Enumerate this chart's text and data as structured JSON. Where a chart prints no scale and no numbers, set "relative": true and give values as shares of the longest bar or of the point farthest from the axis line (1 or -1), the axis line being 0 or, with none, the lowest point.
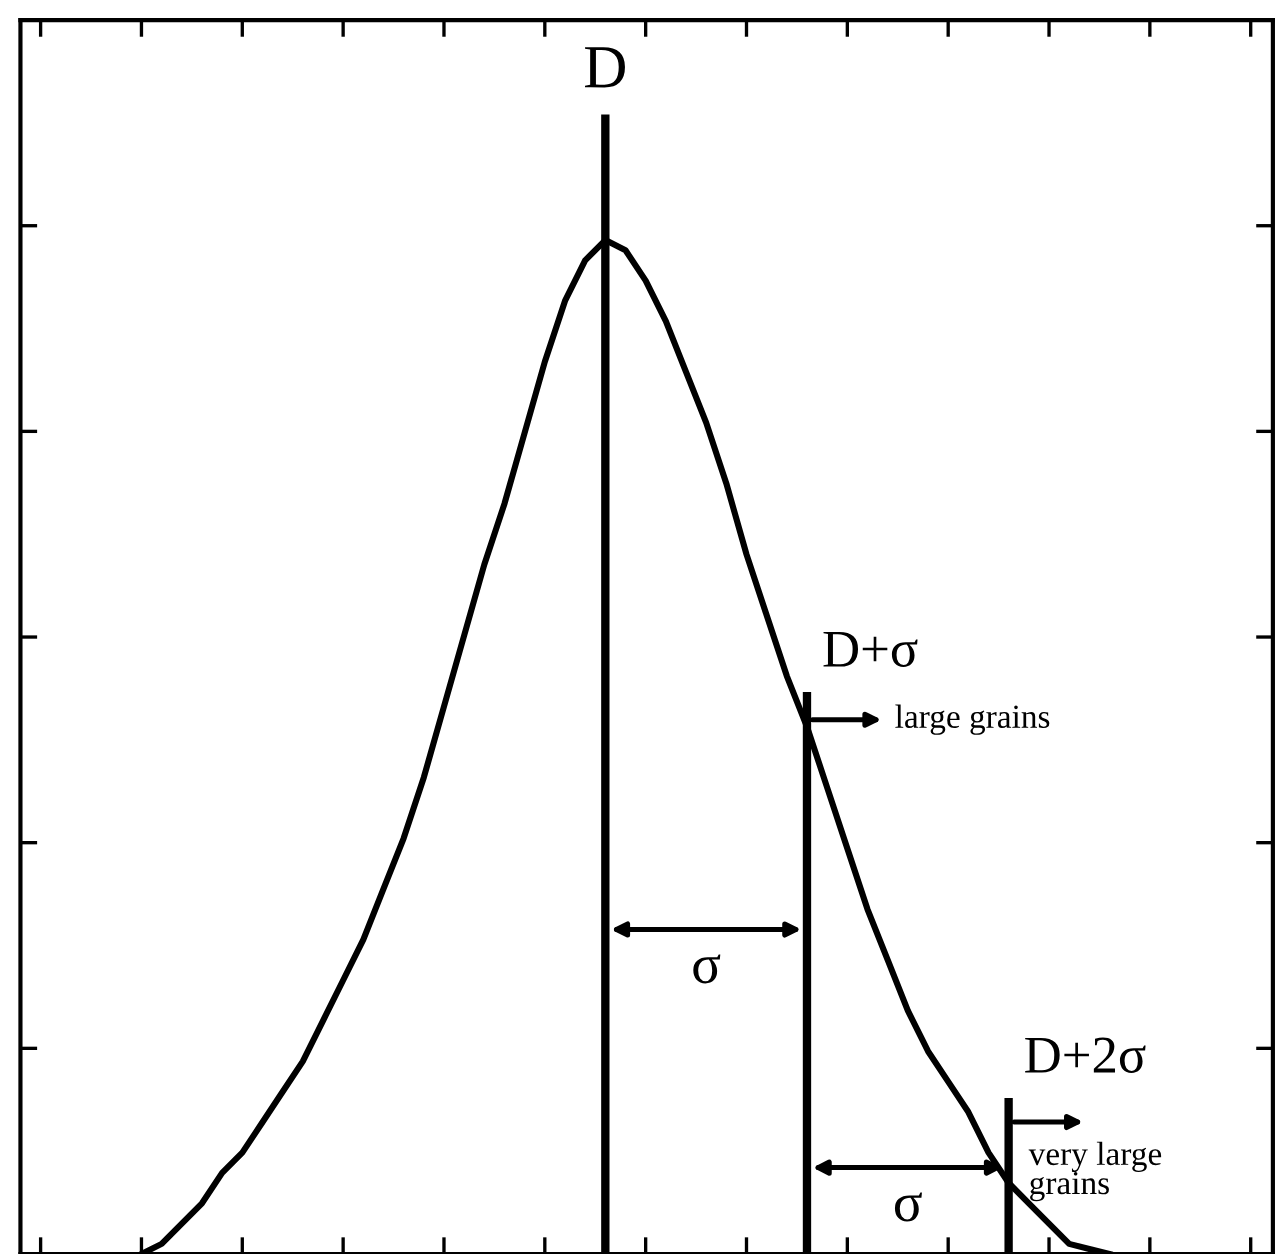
{
  "chart_data": {
    "type": "line",
    "relative": true,
    "color": "#000000",
    "legend": false,
    "grid": false,
    "marker": "none",
    "line_style": "solid",
    "categories": [
      null,
      null,
      null,
      null,
      null,
      null,
      null,
      null,
      null,
      null,
      null,
      null,
      null,
      null,
      null,
      null,
      null,
      null,
      null,
      null,
      null,
      null,
      null,
      null,
      null,
      null,
      null,
      null,
      null,
      null,
      null,
      null,
      null,
      null,
      null,
      null,
      null,
      null,
      null,
      null,
      null,
      null,
      null,
      null,
      null,
      null,
      null,
      null,
      null,
      null,
      null,
      null,
      null,
      null,
      null,
      null,
      null,
      null,
      null,
      null,
      null,
      null,
      null
    ],
    "values": [
      null,
      null,
      null,
      null,
      null,
      null,
      0,
      0.01,
      0.03,
      0.05,
      0.08,
      0.1,
      0.13,
      0.16,
      0.19,
      0.23,
      0.27,
      0.31,
      0.36,
      0.41,
      0.47,
      0.54,
      0.61,
      0.68,
      0.74,
      0.81,
      0.88,
      0.94,
      0.98,
      1,
      0.99,
      0.96,
      0.92,
      0.87,
      0.82,
      0.76,
      0.69,
      0.63,
      0.57,
      0.52,
      0.46,
      0.4,
      0.34,
      0.29,
      0.24,
      0.2,
      0.17,
      0.14,
      0.1,
      0.07,
      0.05,
      0.03,
      0.01,
      0.005,
      0,
      null,
      null,
      null,
      null,
      null,
      null,
      null,
      null
    ],
    "annotations": [
      "D",
      "D+σ",
      "D+2σ",
      "σ",
      "σ",
      "large grains",
      "very large\ngrains"
    ]
  }
}
